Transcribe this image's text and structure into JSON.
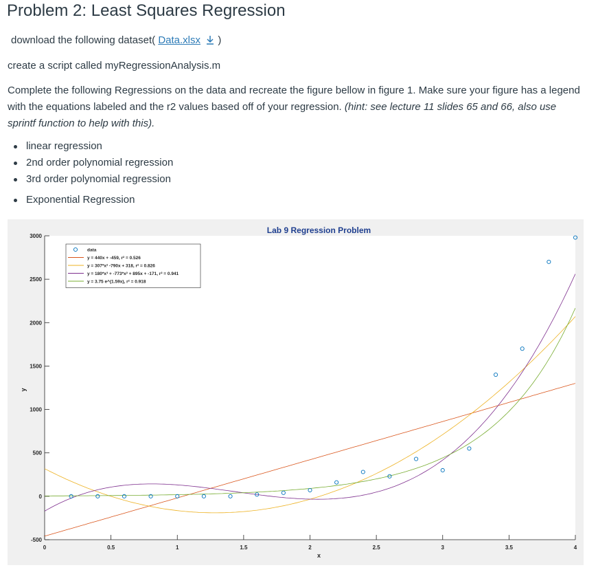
{
  "title": "Problem 2: Least Squares Regression",
  "download": {
    "prefix": "download the following dataset(",
    "link": "Data.xlsx",
    "suffix": ")"
  },
  "script_line": "create a script called myRegressionAnalysis.m",
  "instructions": {
    "text": "Complete the following Regressions on the data and recreate the figure bellow in figure 1. Make sure your figure has a legend with the equations labeled and the r2 values based off of your regression.",
    "hint": "(hint: see lecture 11 slides 65 and 66, also use sprintf function to help with this)."
  },
  "tasks": [
    "linear regression",
    "2nd order polynomial regression",
    "3rd order polynomial regression",
    "Exponential Regression"
  ],
  "chart_data": {
    "type": "scatter",
    "title": "Lab 9 Regression Problem",
    "xlabel": "x",
    "ylabel": "y",
    "xlim": [
      0,
      4
    ],
    "ylim": [
      -500,
      3000
    ],
    "xticks": [
      "0",
      "0.5",
      "1",
      "1.5",
      "2",
      "2.5",
      "3",
      "3.5",
      "4"
    ],
    "yticks": [
      "-500",
      "0",
      "500",
      "1000",
      "1500",
      "2000",
      "2500",
      "3000"
    ],
    "grid": false,
    "legend_position": "top-left",
    "x": [
      0.2,
      0.4,
      0.6,
      0.8,
      1.0,
      1.2,
      1.4,
      1.6,
      1.8,
      2.0,
      2.2,
      2.4,
      2.6,
      2.8,
      3.0,
      3.2,
      3.4,
      3.6,
      3.8,
      4.0
    ],
    "y": [
      0,
      0,
      0,
      0,
      0,
      0,
      0,
      20,
      40,
      70,
      160,
      280,
      230,
      430,
      300,
      550,
      1400,
      1700,
      2700,
      2980
    ],
    "series": [
      {
        "name": "data",
        "kind": "points",
        "color": "#0072bd"
      },
      {
        "name": "y = 440x + -459, r² = 0.526",
        "kind": "linear",
        "coef": [
          440,
          -459
        ],
        "color": "#d95319"
      },
      {
        "name": "y = 307*x² -790x + 318, r² = 0.826",
        "kind": "poly",
        "coef": [
          307,
          -790,
          318
        ],
        "color": "#edb120"
      },
      {
        "name": "y = 180*x³ + -773*x² + 895x + -171, r² = 0.941",
        "kind": "poly",
        "coef": [
          180,
          -773,
          895,
          -171
        ],
        "color": "#7e2f8e"
      },
      {
        "name": "y = 3.75 e^(1.59x), r² = 0.918",
        "kind": "exp",
        "coef": [
          3.75,
          1.59
        ],
        "color": "#77ac30"
      }
    ]
  }
}
